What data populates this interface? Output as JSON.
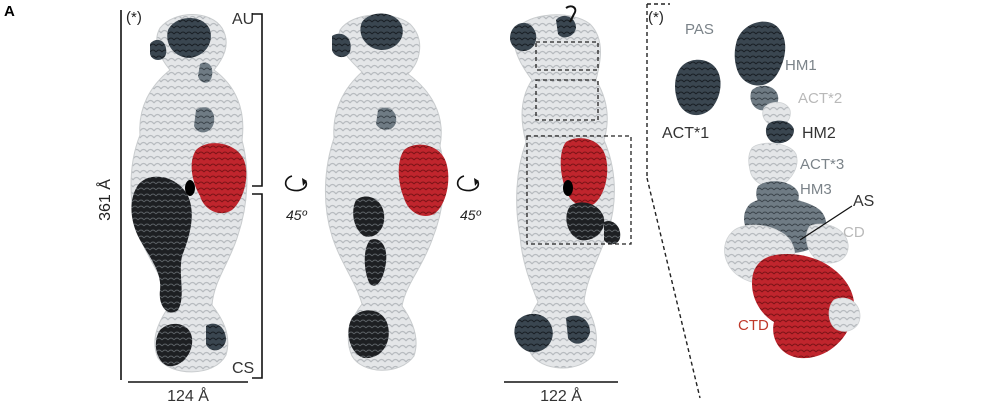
{
  "figure": {
    "panel_label": "A",
    "colors": {
      "light_gray": "#d7d9db",
      "mid_gray": "#9aa3aa",
      "dark_slate": "#36434d",
      "black": "#151515",
      "red": "#c0252d",
      "label_mid": "#7b8389",
      "label_light": "#b9b9b9"
    },
    "view1": {
      "marker": "(*)",
      "au_label": "AU",
      "cs_label": "CS",
      "height_label": "361 Å",
      "width_label": "124 Å"
    },
    "rotation1": {
      "angle": "45º",
      "icon": "rotate-arrow-icon"
    },
    "rotation2": {
      "angle": "45º",
      "icon": "rotate-arrow-icon"
    },
    "view3": {
      "width_label": "122 Å"
    },
    "detail": {
      "marker": "(*)",
      "labels": {
        "pas": "PAS",
        "hm1": "HM1",
        "act2": "ACT*2",
        "act1": "ACT*1",
        "hm2": "HM2",
        "act3": "ACT*3",
        "hm3": "HM3",
        "as": "AS",
        "cd": "CD",
        "ctd": "CTD"
      }
    }
  }
}
